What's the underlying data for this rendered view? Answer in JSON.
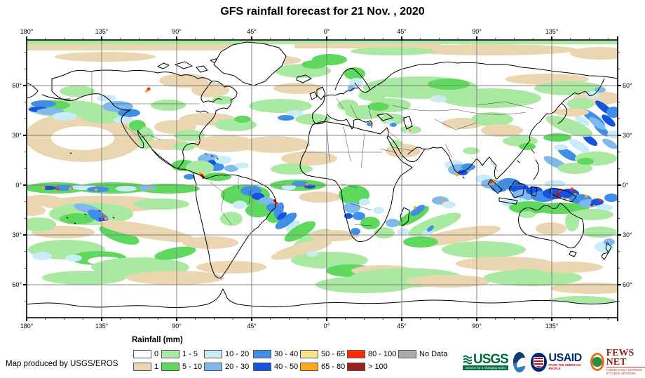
{
  "title": "GFS rainfall forecast for 21 Nov. , 2020",
  "axes": {
    "top": [
      "180°",
      "135°",
      "90°",
      "45°",
      "0°",
      "45°",
      "90°",
      "135°"
    ],
    "bottom": [
      "180°",
      "135°",
      "90°",
      "45°",
      "0°",
      "45°",
      "90°",
      "135°"
    ],
    "left": [
      "60°",
      "30°",
      "0°",
      "30°",
      "60°"
    ],
    "right": [
      "60°",
      "30°",
      "0°",
      "30°",
      "60°"
    ]
  },
  "legend": {
    "title": "Rainfall (mm)",
    "row1": [
      {
        "label": "0",
        "color": "#FFFFFF"
      },
      {
        "label": "1 - 5",
        "color": "#A9E9A2"
      },
      {
        "label": "10 - 20",
        "color": "#C8EDF8"
      },
      {
        "label": "30 - 40",
        "color": "#3F8FE9"
      },
      {
        "label": "50 - 65",
        "color": "#FBE491"
      },
      {
        "label": "80 - 100",
        "color": "#FF2A00"
      },
      {
        "label": "No Data",
        "color": "#ACACAC"
      }
    ],
    "row2": [
      {
        "label": "1",
        "color": "#EAD7B1"
      },
      {
        "label": "5 - 10",
        "color": "#5ED95E"
      },
      {
        "label": "20 - 30",
        "color": "#7FB9EE"
      },
      {
        "label": "40 - 50",
        "color": "#1553E0"
      },
      {
        "label": "65 - 80",
        "color": "#FFA51F"
      },
      {
        "label": "> 100",
        "color": "#9F1F1F"
      }
    ]
  },
  "credit": "Map produced by USGS/EROS",
  "logos": {
    "usgs": {
      "name": "USGS",
      "tagline": "science for a changing world"
    },
    "noaa": {
      "name": "NOAA"
    },
    "usaid": {
      "name": "USAID",
      "tagline": "FROM THE AMERICAN PEOPLE"
    },
    "fewsnet": {
      "name": "FEWS NET",
      "tagline": "FAMINE EARLY WARNING SYSTEMS NETWORK"
    }
  },
  "map_colors": {
    "grid": "#808080",
    "frame": "#000000",
    "coastline": "#000000",
    "ocean": "#FFFFFF"
  }
}
